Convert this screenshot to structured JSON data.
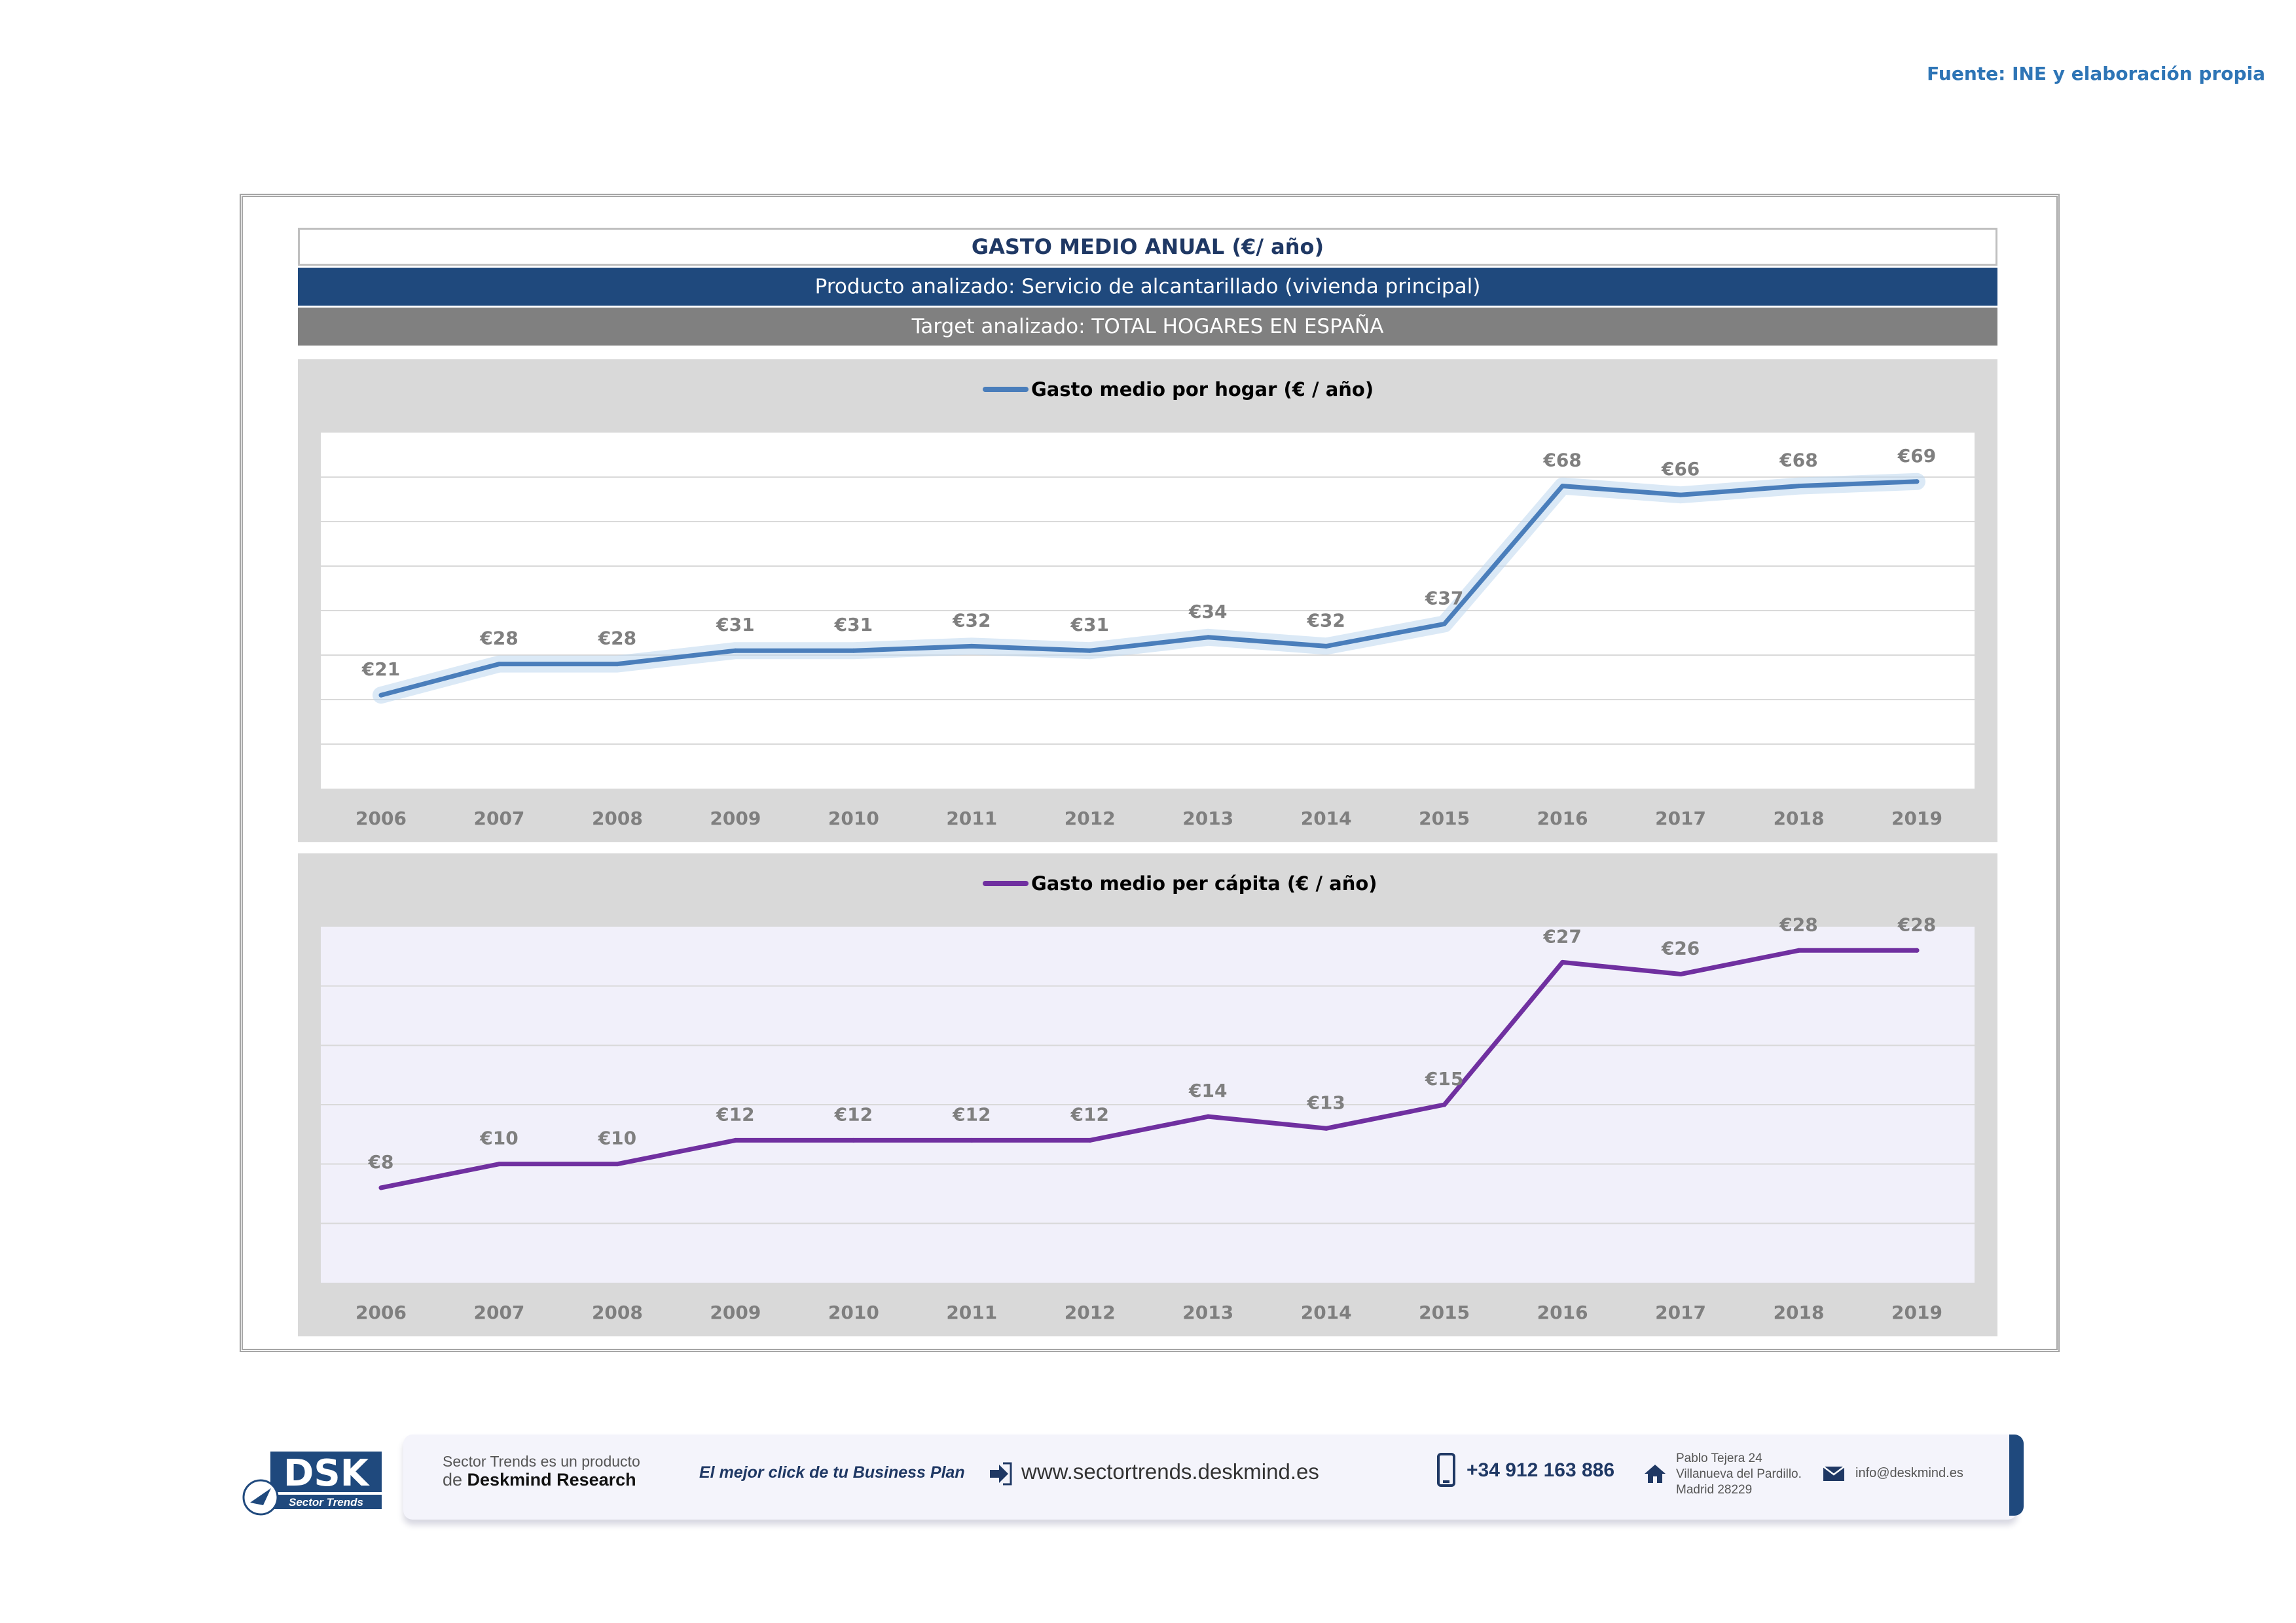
{
  "source": "Fuente: INE y elaboración propia",
  "header": {
    "title": "GASTO MEDIO ANUAL (€/ año)",
    "product": "Producto analizado: Servicio de alcantarillado (vivienda principal)",
    "target": "Target analizado: TOTAL HOGARES EN ESPAÑA"
  },
  "colors": {
    "hogar_line": "#4a7ebb",
    "capita_line": "#7030a0",
    "header_blue": "#1f497d",
    "header_gray": "#808080"
  },
  "chart_data": [
    {
      "type": "line",
      "title": "",
      "x": [
        "2006",
        "2007",
        "2008",
        "2009",
        "2010",
        "2011",
        "2012",
        "2013",
        "2014",
        "2015",
        "2016",
        "2017",
        "2018",
        "2019"
      ],
      "series": [
        {
          "name": "Gasto medio por hogar  (€ / año)",
          "values": [
            21,
            28,
            28,
            31,
            31,
            32,
            31,
            34,
            32,
            37,
            68,
            66,
            68,
            69
          ]
        }
      ],
      "labels": [
        "€21",
        "€28",
        "€28",
        "€31",
        "€31",
        "€32",
        "€31",
        "€34",
        "€32",
        "€37",
        "€68",
        "€66",
        "€68",
        "€69"
      ],
      "ylim": [
        0,
        80
      ],
      "grid": true,
      "legend": "top-center"
    },
    {
      "type": "line",
      "title": "",
      "x": [
        "2006",
        "2007",
        "2008",
        "2009",
        "2010",
        "2011",
        "2012",
        "2013",
        "2014",
        "2015",
        "2016",
        "2017",
        "2018",
        "2019"
      ],
      "series": [
        {
          "name": "Gasto medio per cápita  (€ / año)",
          "values": [
            8,
            10,
            10,
            12,
            12,
            12,
            12,
            14,
            13,
            15,
            27,
            26,
            28,
            28
          ]
        }
      ],
      "labels": [
        "€8",
        "€10",
        "€10",
        "€12",
        "€12",
        "€12",
        "€12",
        "€14",
        "€13",
        "€15",
        "€27",
        "€26",
        "€28",
        "€28"
      ],
      "ylim": [
        0,
        30
      ],
      "grid": true,
      "legend": "top-center"
    }
  ],
  "footer": {
    "logo_text": "DSK",
    "logo_sub": "Sector Trends",
    "product_line1": "Sector Trends es un producto",
    "product_line2_prefix": "de ",
    "product_line2_brand": "Deskmind Research",
    "slogan": "El mejor click de tu Business Plan",
    "website": "www.sectortrends.deskmind.es",
    "phone": "+34 912 163 886",
    "address1": "Pablo Tejera 24",
    "address2": "Villanueva del Pardillo.",
    "address3": "Madrid 28229",
    "email": "info@deskmind.es"
  }
}
